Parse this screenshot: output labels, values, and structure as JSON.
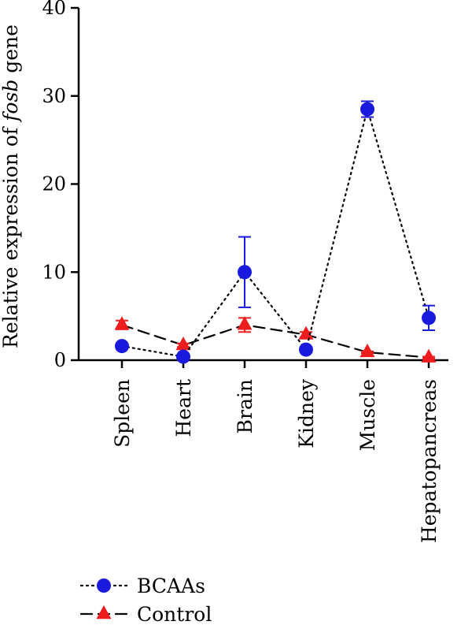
{
  "chart_data": {
    "type": "line",
    "title": "",
    "ylabel_parts": [
      "Relative expression of ",
      "fosb",
      " gene"
    ],
    "xlabel": "",
    "ylim": [
      0,
      40
    ],
    "yticks": [
      0,
      10,
      20,
      30,
      40
    ],
    "categories": [
      "Spleen",
      "Heart",
      "Brain",
      "Kidney",
      "Muscle",
      "Hepatopancreas"
    ],
    "grid": false,
    "legend_position": "bottom-left",
    "series": [
      {
        "name": "BCAAs",
        "color": "#1a1adf",
        "marker": "circle",
        "line_style": "dotted",
        "values": [
          1.6,
          0.4,
          10.0,
          1.2,
          28.5,
          4.8
        ],
        "errors": [
          0.3,
          0.2,
          4.0,
          0.3,
          0.9,
          1.4
        ]
      },
      {
        "name": "Control",
        "color": "#ee1c1c",
        "marker": "triangle",
        "line_style": "dashed",
        "values": [
          4.0,
          1.7,
          4.0,
          2.9,
          0.9,
          0.3
        ],
        "errors": [
          0.5,
          0.2,
          0.8,
          0.3,
          0.1,
          0.1
        ]
      }
    ]
  }
}
